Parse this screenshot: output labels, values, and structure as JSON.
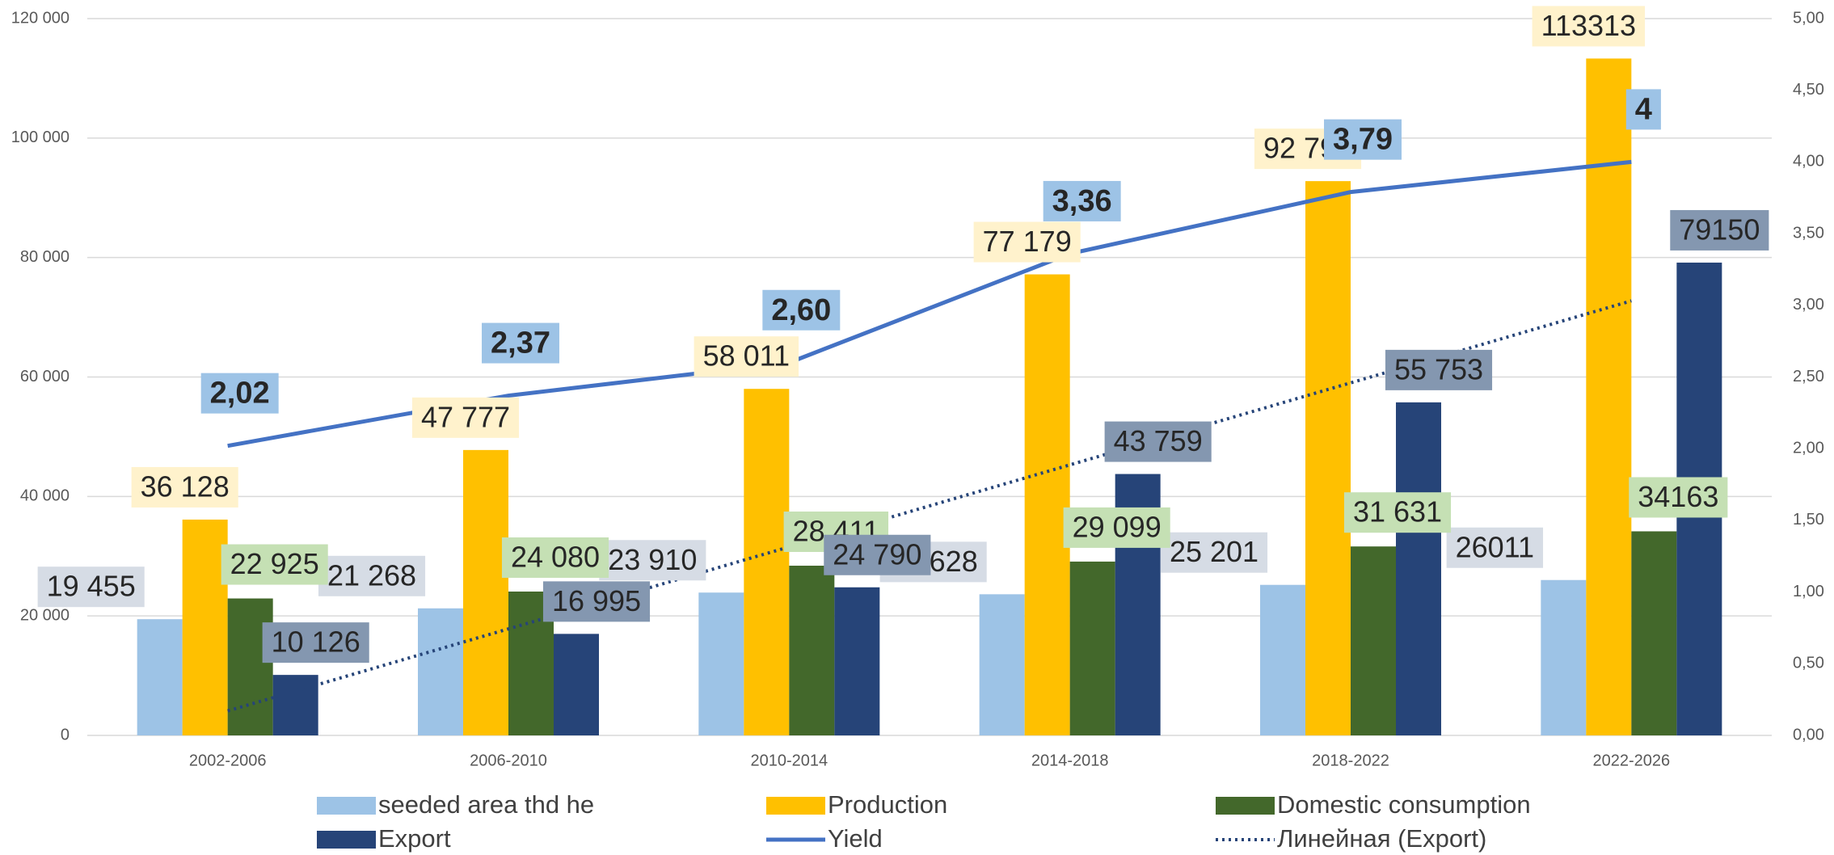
{
  "chart_data": {
    "type": "bar",
    "categories": [
      "2002-2006",
      "2006-2010",
      "2010-2014",
      "2014-2018",
      "2018-2022",
      "2022-2026"
    ],
    "series": [
      {
        "name": "seeded area thd he",
        "color": "#9dc3e6",
        "label_color": "#d6dce5",
        "values": [
          19455,
          21268,
          23910,
          23628,
          25201,
          26011
        ],
        "value_labels": [
          "19 455",
          "21 268",
          "23 910",
          "23 628",
          "25 201",
          "26011"
        ]
      },
      {
        "name": "Production",
        "color": "#ffc000",
        "label_color": "#fff2cc",
        "values": [
          36128,
          47777,
          58011,
          77179,
          92790,
          113313
        ],
        "value_labels": [
          "36 128",
          "47 777",
          "58 011",
          "77 179",
          "92 790",
          "113313"
        ]
      },
      {
        "name": "Domestic consumption",
        "color": "#43682b",
        "label_color": "#c5e0b4",
        "values": [
          22925,
          24080,
          28411,
          29099,
          31631,
          34163
        ],
        "value_labels": [
          "22 925",
          "24 080",
          "28 411",
          "29 099",
          "31 631",
          "34163"
        ]
      },
      {
        "name": "Export",
        "color": "#264478",
        "label_color": "#8497b0",
        "values": [
          10126,
          16995,
          24790,
          43759,
          55753,
          79150
        ],
        "value_labels": [
          "10 126",
          "16 995",
          "24 790",
          "43 759",
          "55 753",
          "79150"
        ]
      },
      {
        "name": "Yield",
        "type": "line",
        "axis": "y2",
        "color": "#4472c4",
        "label_color": "#9dc3e6",
        "values": [
          2.02,
          2.37,
          2.6,
          3.36,
          3.79,
          4
        ],
        "value_labels": [
          "2,02",
          "2,37",
          "2,60",
          "3,36",
          "3,79",
          "4"
        ]
      },
      {
        "name": "Линейная (Export)",
        "type": "line",
        "style": "dotted",
        "color": "#264478",
        "values": [
          4100,
          17830,
          31560,
          45290,
          59020,
          72750
        ]
      }
    ],
    "ylim": [
      0,
      120000
    ],
    "yticks": [
      0,
      {
        "value": 20000,
        "label": "20 000"
      },
      {
        "value": 40000,
        "label": "40 000"
      },
      {
        "value": 60000,
        "label": "60 000"
      },
      {
        "value": 80000,
        "label": "80 000"
      },
      {
        "value": 100000,
        "label": "100 000"
      },
      {
        "value": 120000,
        "label": "120 000"
      }
    ],
    "y2lim": [
      0,
      5
    ],
    "y2ticks": [
      {
        "value": 0,
        "label": "0,00"
      },
      {
        "value": 0.5,
        "label": "0,50"
      },
      {
        "value": 1,
        "label": "1,00"
      },
      {
        "value": 1.5,
        "label": "1,50"
      },
      {
        "value": 2,
        "label": "2,00"
      },
      {
        "value": 2.5,
        "label": "2,50"
      },
      {
        "value": 3,
        "label": "3,00"
      },
      {
        "value": 3.5,
        "label": "3,50"
      },
      {
        "value": 4,
        "label": "4,00"
      },
      {
        "value": 4.5,
        "label": "4,50"
      },
      {
        "value": 5,
        "label": "5,00"
      }
    ],
    "grid": true,
    "legend": "bottom"
  }
}
